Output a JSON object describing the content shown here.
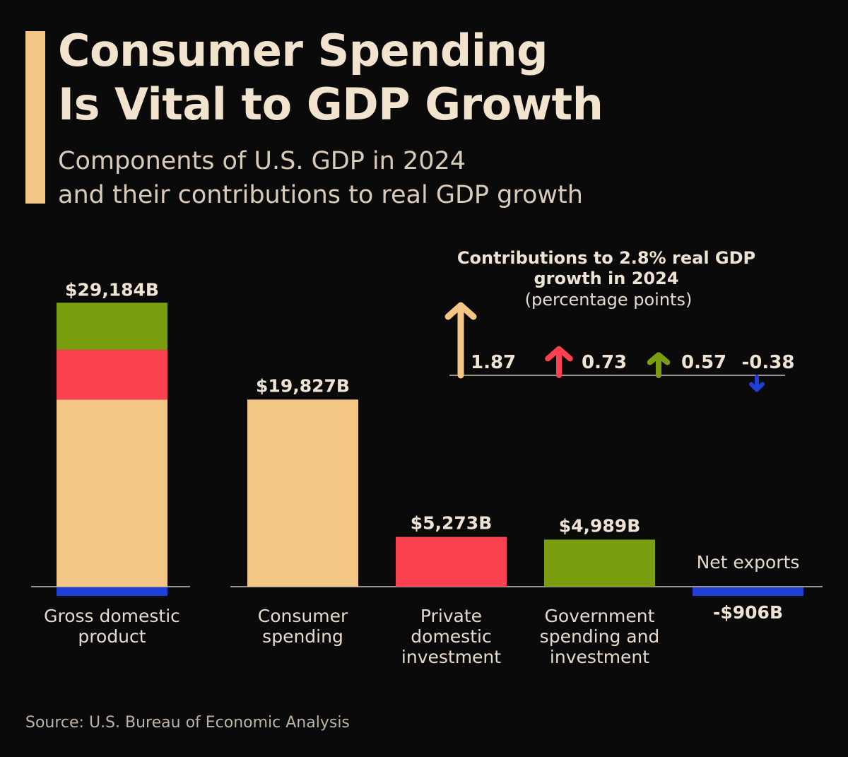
{
  "title_line1": "Consumer Spending",
  "title_line2": "Is Vital to GDP Growth",
  "subtitle_line1": "Components of U.S. GDP in 2024",
  "subtitle_line2": "and their contributions to real GDP growth",
  "source": "Source: U.S. Bureau of Economic Analysis",
  "colors": {
    "consumer": "#f3c686",
    "private": "#fb4050",
    "government": "#7b9d10",
    "net_exports": "#1f3fd6",
    "text": "#efe3d3"
  },
  "chart_data": [
    {
      "type": "bar",
      "title": "Components of U.S. GDP in 2024",
      "unit": "billions USD",
      "gdp": {
        "label_lines": [
          "Gross domestic",
          "product"
        ],
        "value_label": "$29,184B",
        "value": 29184,
        "stack": [
          {
            "component": "Consumer spending",
            "value": 19827,
            "color": "#f3c686"
          },
          {
            "component": "Private domestic investment",
            "value": 5273,
            "color": "#fb4050"
          },
          {
            "component": "Government spending and investment",
            "value": 4989,
            "color": "#7b9d10"
          },
          {
            "component": "Net exports",
            "value": -906,
            "color": "#1f3fd6"
          }
        ]
      },
      "categories": [
        {
          "label_lines": [
            "Consumer",
            "spending"
          ],
          "value": 19827,
          "value_label": "$19,827B",
          "color": "#f3c686"
        },
        {
          "label_lines": [
            "Private",
            "domestic",
            "investment"
          ],
          "value": 5273,
          "value_label": "$5,273B",
          "color": "#fb4050"
        },
        {
          "label_lines": [
            "Government",
            "spending and",
            "investment"
          ],
          "value": 4989,
          "value_label": "$4,989B",
          "color": "#7b9d10"
        },
        {
          "label_lines": [
            "Net exports"
          ],
          "value": -906,
          "value_label": "-$906B",
          "color": "#1f3fd6"
        }
      ]
    },
    {
      "type": "bar",
      "title_lines": [
        "Contributions to 2.8% real GDP",
        "growth in 2024"
      ],
      "ylabel": "(percentage points)",
      "values": [
        {
          "component": "Consumer spending",
          "value": 1.87,
          "label": "1.87",
          "color": "#f3c686"
        },
        {
          "component": "Private domestic investment",
          "value": 0.73,
          "label": "0.73",
          "color": "#fb4050"
        },
        {
          "component": "Government spending and investment",
          "value": 0.57,
          "label": "0.57",
          "color": "#7b9d10"
        },
        {
          "component": "Net exports",
          "value": -0.38,
          "label": "-0.38",
          "color": "#1f3fd6"
        }
      ]
    }
  ]
}
